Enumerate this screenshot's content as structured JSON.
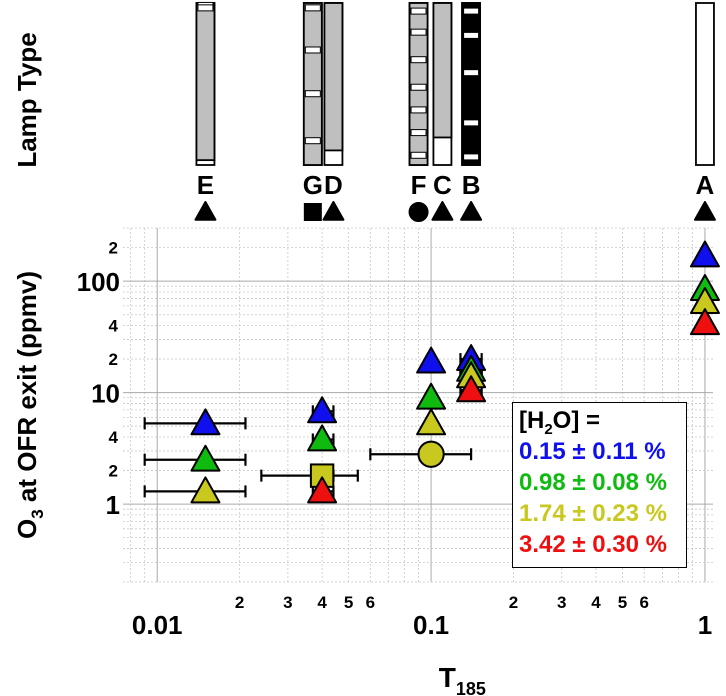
{
  "colors": {
    "blue": "#1010ee",
    "green": "#10bb10",
    "yellow": "#c8c81e",
    "red": "#ee1010",
    "gray": "#bfbfbf",
    "grid": "#c8c8c8"
  },
  "chart_data": {
    "type": "scatter",
    "xscale": "log",
    "yscale": "log",
    "xlim": [
      0.0075,
      1.07
    ],
    "ylim": [
      0.2,
      300
    ],
    "grid": true,
    "xlabel_main": "T",
    "xlabel_sub": "185",
    "ylabel_main": "O",
    "ylabel_sub": "3",
    "ylabel_rest": " at OFR exit (ppmv)",
    "x_major_ticks": [
      {
        "value": 0.01,
        "label": "0.01"
      },
      {
        "value": 0.1,
        "label": "0.1"
      },
      {
        "value": 1,
        "label": "1"
      }
    ],
    "x_minor_ticks": [
      {
        "value": 0.02,
        "label": "2"
      },
      {
        "value": 0.03,
        "label": "3"
      },
      {
        "value": 0.04,
        "label": "4"
      },
      {
        "value": 0.05,
        "label": "5"
      },
      {
        "value": 0.06,
        "label": "6"
      },
      {
        "value": 0.2,
        "label": "2"
      },
      {
        "value": 0.3,
        "label": "3"
      },
      {
        "value": 0.4,
        "label": "4"
      },
      {
        "value": 0.5,
        "label": "5"
      },
      {
        "value": 0.6,
        "label": "6"
      }
    ],
    "y_major_ticks": [
      {
        "value": 1,
        "label": "1"
      },
      {
        "value": 10,
        "label": "10"
      },
      {
        "value": 100,
        "label": "100"
      }
    ],
    "y_minor_ticks": [
      {
        "value": 2,
        "label": "2"
      },
      {
        "value": 4,
        "label": "4"
      },
      {
        "value": 20,
        "label": "2"
      },
      {
        "value": 40,
        "label": "4"
      },
      {
        "value": 200,
        "label": "2"
      }
    ],
    "legend": {
      "title_main": "[H",
      "title_sub": "2",
      "title_rest": "O] =",
      "entries": [
        {
          "label": "0.15 ± 0.11 %",
          "color_key": "blue"
        },
        {
          "label": "0.98 ± 0.08 %",
          "color_key": "green"
        },
        {
          "label": "1.74 ± 0.23 %",
          "color_key": "yellow"
        },
        {
          "label": "3.42 ± 0.30 %",
          "color_key": "red"
        }
      ]
    },
    "series": [
      {
        "name": "0.15 ± 0.11 %",
        "color_key": "blue",
        "points": [
          {
            "x": 0.015,
            "y": 5.3,
            "shape": "triangle"
          },
          {
            "x": 0.04,
            "y": 6.8,
            "shape": "triangle"
          },
          {
            "x": 0.1,
            "y": 19,
            "shape": "triangle"
          },
          {
            "x": 0.14,
            "y": 20,
            "shape": "triangle"
          },
          {
            "x": 1,
            "y": 170,
            "shape": "triangle"
          }
        ]
      },
      {
        "name": "0.98 ± 0.08 %",
        "color_key": "green",
        "points": [
          {
            "x": 0.015,
            "y": 2.5,
            "shape": "triangle"
          },
          {
            "x": 0.04,
            "y": 3.8,
            "shape": "triangle"
          },
          {
            "x": 0.1,
            "y": 9,
            "shape": "triangle"
          },
          {
            "x": 0.14,
            "y": 16,
            "shape": "triangle"
          },
          {
            "x": 1,
            "y": 85,
            "shape": "triangle"
          }
        ]
      },
      {
        "name": "1.74 ± 0.23 %",
        "color_key": "yellow",
        "points": [
          {
            "x": 0.015,
            "y": 1.3,
            "shape": "triangle"
          },
          {
            "x": 0.04,
            "y": 1.8,
            "shape": "square"
          },
          {
            "x": 0.1,
            "y": 5.3,
            "shape": "triangle"
          },
          {
            "x": 0.1,
            "y": 2.8,
            "shape": "circle"
          },
          {
            "x": 0.14,
            "y": 14,
            "shape": "triangle"
          },
          {
            "x": 1,
            "y": 65,
            "shape": "triangle"
          }
        ]
      },
      {
        "name": "3.42 ± 0.30 %",
        "color_key": "red",
        "points": [
          {
            "x": 0.04,
            "y": 1.3,
            "shape": "triangle"
          },
          {
            "x": 0.14,
            "y": 10.5,
            "shape": "triangle"
          },
          {
            "x": 1,
            "y": 42,
            "shape": "triangle"
          }
        ]
      }
    ],
    "error_bars": [
      {
        "y": 5.3,
        "x_lo": 0.009,
        "x_hi": 0.021
      },
      {
        "y": 2.5,
        "x_lo": 0.009,
        "x_hi": 0.021
      },
      {
        "y": 1.3,
        "x_lo": 0.009,
        "x_hi": 0.021
      },
      {
        "y": 6.8,
        "x_lo": 0.037,
        "x_hi": 0.044
      },
      {
        "y": 3.8,
        "x_lo": 0.037,
        "x_hi": 0.044
      },
      {
        "y": 1.8,
        "x_lo": 0.024,
        "x_hi": 0.054
      },
      {
        "y": 1.8,
        "x_lo": 0.037,
        "x_hi": 0.044
      },
      {
        "y": 1.3,
        "x_lo": 0.037,
        "x_hi": 0.044
      },
      {
        "y": 2.8,
        "x_lo": 0.06,
        "x_hi": 0.14
      },
      {
        "y": 20,
        "x_lo": 0.128,
        "x_hi": 0.153
      },
      {
        "y": 16,
        "x_lo": 0.128,
        "x_hi": 0.153
      },
      {
        "y": 14,
        "x_lo": 0.128,
        "x_hi": 0.153
      },
      {
        "y": 10.5,
        "x_lo": 0.128,
        "x_hi": 0.153
      }
    ],
    "lamp_type": {
      "label": "Lamp Type",
      "lamps": [
        {
          "letter": "E",
          "x": 0.015,
          "fill": "gray",
          "transmission": 0.97,
          "bands": [
            0.015,
            0.03
          ],
          "marker": "triangle"
        },
        {
          "letter": "G",
          "x": 0.037,
          "fill": "gray",
          "transmission": 1.0,
          "bands": [
            0.03,
            0.29,
            0.56,
            0.85
          ],
          "marker": "square"
        },
        {
          "letter": "D",
          "x": 0.044,
          "fill": "gray",
          "transmission": 0.91,
          "bands": [],
          "marker": "triangle"
        },
        {
          "letter": "F",
          "x": 0.09,
          "fill": "gray",
          "transmission": 1.0,
          "bands": [
            0.05,
            0.18,
            0.35,
            0.52,
            0.66,
            0.8,
            0.94
          ],
          "marker": "circle"
        },
        {
          "letter": "C",
          "x": 0.11,
          "fill": "gray",
          "transmission": 0.83,
          "bands": [],
          "marker": "triangle"
        },
        {
          "letter": "B",
          "x": 0.14,
          "fill": "black",
          "transmission": 1.0,
          "bands": [
            0.05,
            0.2,
            0.43,
            0.74,
            0.95
          ],
          "marker": "triangle"
        },
        {
          "letter": "A",
          "x": 1,
          "fill": "white",
          "transmission": 1.0,
          "bands": [],
          "marker": "triangle"
        }
      ]
    }
  }
}
